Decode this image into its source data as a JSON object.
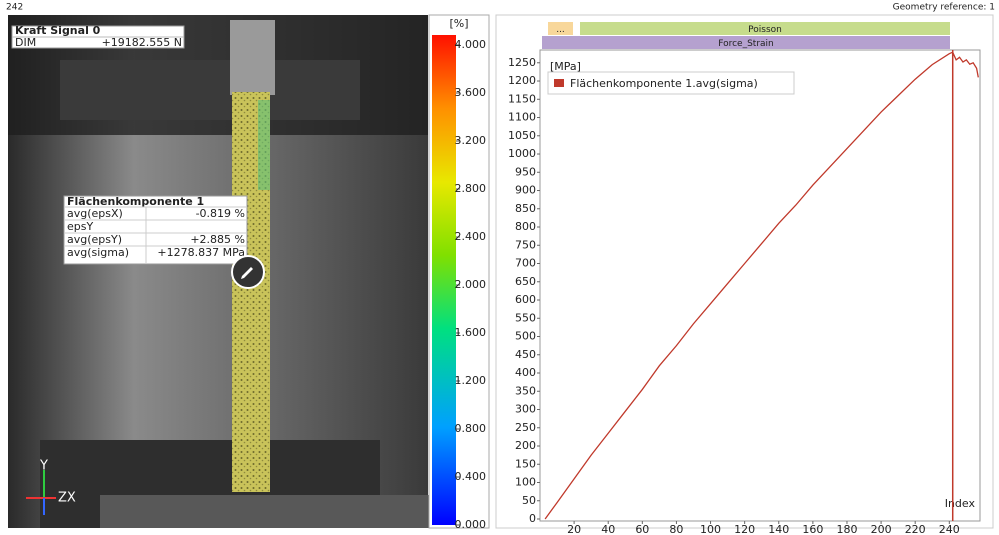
{
  "header": {
    "index": "242",
    "reference": "Geometry reference: 1"
  },
  "image_view": {
    "signal": {
      "title": "Kraft Signal 0",
      "label": "DIM",
      "value": "+19182.555 N"
    },
    "component": {
      "title": "Flächenkomponente 1",
      "rows": [
        [
          "avg(epsX)",
          "-0.819 %"
        ],
        [
          "epsY"
        ],
        [
          "avg(epsY)",
          "+2.885 %"
        ],
        [
          "avg(sigma)",
          "+1278.837 MPa"
        ]
      ]
    },
    "axes": {
      "y": "Y",
      "x": "ZX"
    }
  },
  "colorbar": {
    "unit": "[%]",
    "lim": [
      0,
      4
    ],
    "ticks": [
      {
        "value": 4,
        "label": "4.000"
      },
      {
        "value": 3.6,
        "label": "3.600"
      },
      {
        "value": 3.2,
        "label": "3.200"
      },
      {
        "value": 2.8,
        "label": "2.800"
      },
      {
        "value": 2.4,
        "label": "2.400"
      },
      {
        "value": 2,
        "label": "2.000"
      },
      {
        "value": 1.6,
        "label": "1.600"
      },
      {
        "value": 1.2,
        "label": "1.200"
      },
      {
        "value": 0.8,
        "label": "0.800"
      },
      {
        "value": 0.4,
        "label": "0.400"
      },
      {
        "value": 0,
        "label": "0.000"
      }
    ]
  },
  "stages": [
    {
      "label": "...",
      "color": "#f8d79a"
    },
    {
      "label": "Poisson",
      "color": "#c6dc8c"
    },
    {
      "label": "Force_Strain",
      "color": "#b5a1cf"
    }
  ],
  "chart_data": {
    "type": "line",
    "y_unit": "[MPa]",
    "x_label": "Index",
    "x": [
      3,
      10,
      20,
      30,
      40,
      50,
      60,
      70,
      80,
      90,
      100,
      110,
      120,
      130,
      140,
      150,
      160,
      170,
      180,
      190,
      200,
      210,
      220,
      230,
      240,
      242,
      244,
      246,
      248,
      250,
      252,
      254,
      256,
      257
    ],
    "series": [
      {
        "name": "Flächenkomponente 1.avg(sigma)",
        "color": "#c0392b",
        "values": [
          0,
          45,
          110,
          175,
          235,
          295,
          355,
          420,
          475,
          535,
          590,
          645,
          700,
          755,
          810,
          860,
          915,
          965,
          1015,
          1065,
          1115,
          1160,
          1205,
          1245,
          1275,
          1279,
          1258,
          1265,
          1252,
          1258,
          1246,
          1250,
          1235,
          1210
        ]
      }
    ],
    "cursor_x": 242,
    "xlim": [
      0,
      258
    ],
    "ylim": [
      0,
      1285
    ],
    "xticks": [
      20,
      40,
      60,
      80,
      100,
      120,
      140,
      160,
      180,
      200,
      220,
      240
    ],
    "yticks": [
      0,
      50,
      100,
      150,
      200,
      250,
      300,
      350,
      400,
      450,
      500,
      550,
      600,
      650,
      700,
      750,
      800,
      850,
      900,
      950,
      1000,
      1050,
      1100,
      1150,
      1200,
      1250
    ],
    "grid": false
  }
}
